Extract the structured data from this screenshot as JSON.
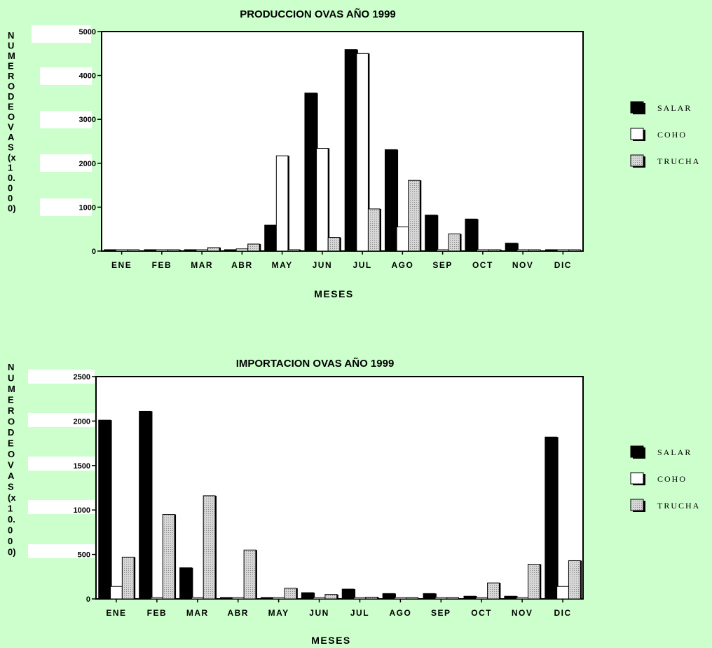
{
  "chart_data": [
    {
      "type": "bar",
      "title": "PRODUCCION  OVAS AÑO 1999",
      "xlabel": "MESES",
      "ylabel": "NUMERODEOVAS(x10.000)",
      "ylim": [
        0,
        5000
      ],
      "yticks": [
        "0",
        "1000",
        "2000",
        "3000",
        "4000",
        "5000"
      ],
      "categories": [
        "ENE",
        "FEB",
        "MAR",
        "ABR",
        "MAY",
        "JUN",
        "JUL",
        "AGO",
        "SEP",
        "OCT",
        "NOV",
        "DIC"
      ],
      "series": [
        {
          "name": "SALAR",
          "values": [
            0,
            0,
            0,
            20,
            590,
            3600,
            4590,
            2310,
            820,
            730,
            180,
            0
          ]
        },
        {
          "name": "COHO",
          "values": [
            0,
            0,
            0,
            50,
            2170,
            2340,
            4500,
            550,
            0,
            0,
            0,
            0
          ]
        },
        {
          "name": "TRUCHA",
          "values": [
            0,
            30,
            80,
            160,
            30,
            310,
            960,
            1610,
            390,
            30,
            0,
            0
          ]
        }
      ],
      "legend_position": "right",
      "grid": false
    },
    {
      "type": "bar",
      "title": "IMPORTACION OVAS AÑO 1999",
      "xlabel": "MESES",
      "ylabel": "NUMERODEOVAS(x10.000)",
      "ylim": [
        0,
        2500
      ],
      "yticks": [
        "0",
        "500",
        "1000",
        "1500",
        "2000",
        "2500"
      ],
      "categories": [
        "ENE",
        "FEB",
        "MAR",
        "ABR",
        "MAY",
        "JUN",
        "JUL",
        "AGO",
        "SEP",
        "OCT",
        "NOV",
        "DIC"
      ],
      "series": [
        {
          "name": "SALAR",
          "values": [
            2010,
            2110,
            350,
            0,
            0,
            70,
            110,
            60,
            60,
            30,
            30,
            1820
          ]
        },
        {
          "name": "COHO",
          "values": [
            140,
            0,
            0,
            0,
            0,
            0,
            0,
            0,
            0,
            0,
            0,
            140
          ]
        },
        {
          "name": "TRUCHA",
          "values": [
            470,
            950,
            1160,
            550,
            120,
            50,
            20,
            0,
            0,
            180,
            390,
            430
          ]
        }
      ],
      "legend_position": "right",
      "grid": false
    }
  ],
  "colors": {
    "background": "#ccffcc",
    "plot": "#ffffff",
    "salar": "#000000",
    "coho": "#ffffff",
    "trucha": "#c8c8c8"
  }
}
